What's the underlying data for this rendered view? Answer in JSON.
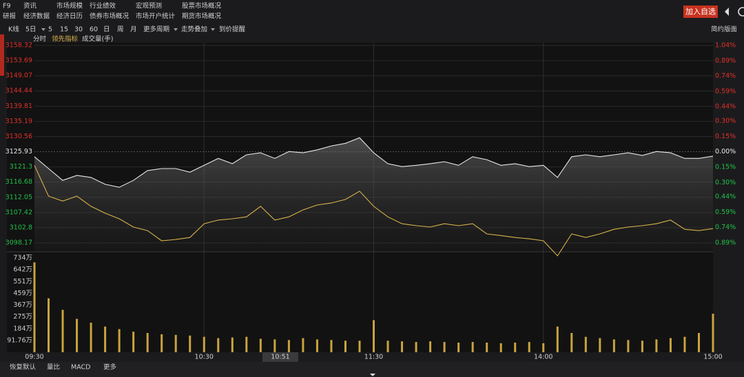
{
  "toolbar": {
    "row1": [
      "F9",
      "资讯",
      "市场规模",
      "行业绩效",
      "宏观预测",
      "股票市场概况"
    ],
    "row2": [
      "研报",
      "经济数据",
      "经济日历",
      "债券市场概况",
      "市场开户统计",
      "期货市场概况"
    ],
    "button": "加入自选"
  },
  "period_bar": {
    "items": [
      "K线",
      "5日",
      "5",
      "15",
      "30",
      "60",
      "日",
      "周",
      "月",
      "更多周期",
      "走势叠加",
      "到价提醒"
    ],
    "right": "简约版面"
  },
  "tabs": [
    "分时",
    "领先指标",
    "成交量(手)"
  ],
  "bottom_tabs": [
    "恢复默认",
    "量比",
    "MACD",
    "更多"
  ],
  "chart_data": {
    "type": "line",
    "x": [
      "09:30",
      "09:35",
      "09:40",
      "09:45",
      "09:50",
      "09:55",
      "10:00",
      "10:05",
      "10:10",
      "10:15",
      "10:20",
      "10:25",
      "10:30",
      "10:35",
      "10:40",
      "10:45",
      "10:50",
      "10:55",
      "11:00",
      "11:05",
      "11:10",
      "11:15",
      "11:20",
      "11:25",
      "11:30",
      "13:05",
      "13:10",
      "13:15",
      "13:20",
      "13:25",
      "13:30",
      "13:35",
      "13:40",
      "13:45",
      "13:50",
      "13:55",
      "14:00",
      "14:05",
      "14:10",
      "14:15",
      "14:20",
      "14:25",
      "14:30",
      "14:35",
      "14:40",
      "14:45",
      "14:50",
      "14:55",
      "15:00"
    ],
    "cursor_time": "10:51",
    "series": [
      {
        "color": "#e8e8e8",
        "values": [
          3124.4,
          3120.8,
          3117.2,
          3118.7,
          3118.1,
          3116.0,
          3115.1,
          3117.2,
          3120.2,
          3120.8,
          3120.8,
          3119.7,
          3121.8,
          3123.9,
          3122.3,
          3125.0,
          3125.6,
          3123.9,
          3126.0,
          3125.6,
          3126.5,
          3127.7,
          3128.5,
          3130.2,
          3125.6,
          3122.3,
          3121.4,
          3121.8,
          3122.3,
          3122.9,
          3121.8,
          3124.4,
          3123.5,
          3121.8,
          3122.3,
          3121.4,
          3121.8,
          3118.1,
          3124.4,
          3125.0,
          3124.4,
          3125.0,
          3125.6,
          3124.8,
          3126.0,
          3125.6,
          3123.9,
          3123.9,
          3124.6
        ]
      },
      {
        "color": "#d9b44a",
        "values": [
          3121.8,
          3112.4,
          3110.9,
          3112.4,
          3109.3,
          3107.2,
          3105.5,
          3103.0,
          3101.9,
          3098.8,
          3099.2,
          3099.8,
          3104.0,
          3105.1,
          3105.5,
          3106.1,
          3109.3,
          3105.1,
          3106.1,
          3108.2,
          3109.7,
          3110.3,
          3111.4,
          3113.9,
          3109.3,
          3106.1,
          3104.0,
          3103.4,
          3103.0,
          3104.0,
          3103.4,
          3104.0,
          3100.9,
          3100.4,
          3099.8,
          3099.4,
          3098.8,
          3094.2,
          3100.9,
          3099.8,
          3100.9,
          3102.3,
          3103.0,
          3103.4,
          3104.0,
          3105.1,
          3102.3,
          3101.9,
          3102.5
        ]
      }
    ],
    "ylim": [
      3098.17,
      3158.32
    ],
    "yticks": [
      3158.32,
      3153.69,
      3149.07,
      3144.44,
      3139.81,
      3135.19,
      3130.56,
      3125.93,
      3121.3,
      3116.68,
      3112.05,
      3107.42,
      3102.8,
      3098.17
    ],
    "y2lim": [
      -0.89,
      1.04
    ],
    "y2ticks": [
      {
        "value": 1.04,
        "label": "1.04%"
      },
      {
        "value": 0.89,
        "label": "0.89%"
      },
      {
        "value": 0.74,
        "label": "0.74%"
      },
      {
        "value": 0.59,
        "label": "0.59%"
      },
      {
        "value": 0.44,
        "label": "0.44%"
      },
      {
        "value": 0.3,
        "label": "0.30%"
      },
      {
        "value": 0.15,
        "label": "0.15%"
      },
      {
        "value": 0,
        "label": "0.00%"
      },
      {
        "value": -0.15,
        "label": "0.15%"
      },
      {
        "value": -0.3,
        "label": "0.30%"
      },
      {
        "value": -0.44,
        "label": "0.44%"
      },
      {
        "value": -0.59,
        "label": "0.59%"
      },
      {
        "value": -0.74,
        "label": "0.74%"
      },
      {
        "value": -0.89,
        "label": "0.89%"
      }
    ],
    "volume": {
      "color": "#c9a43e",
      "values": [
        700,
        420,
        330,
        260,
        230,
        200,
        180,
        160,
        150,
        140,
        135,
        130,
        120,
        110,
        115,
        120,
        105,
        100,
        95,
        110,
        100,
        95,
        90,
        90,
        250,
        90,
        85,
        80,
        85,
        80,
        75,
        80,
        75,
        70,
        75,
        80,
        70,
        200,
        150,
        120,
        110,
        100,
        95,
        90,
        100,
        110,
        120,
        150,
        300
      ],
      "ylim": [
        0,
        734.08
      ],
      "yticks": [
        {
          "value": 734.08,
          "label": "734万"
        },
        {
          "value": 642.32,
          "label": "642万"
        },
        {
          "value": 550.56,
          "label": "551万"
        },
        {
          "value": 458.8,
          "label": "459万"
        },
        {
          "value": 367.04,
          "label": "367万"
        },
        {
          "value": 275.28,
          "label": "275万"
        },
        {
          "value": 183.52,
          "label": "184万"
        },
        {
          "value": 91.76,
          "label": "91.76万"
        }
      ]
    },
    "grid": true
  }
}
